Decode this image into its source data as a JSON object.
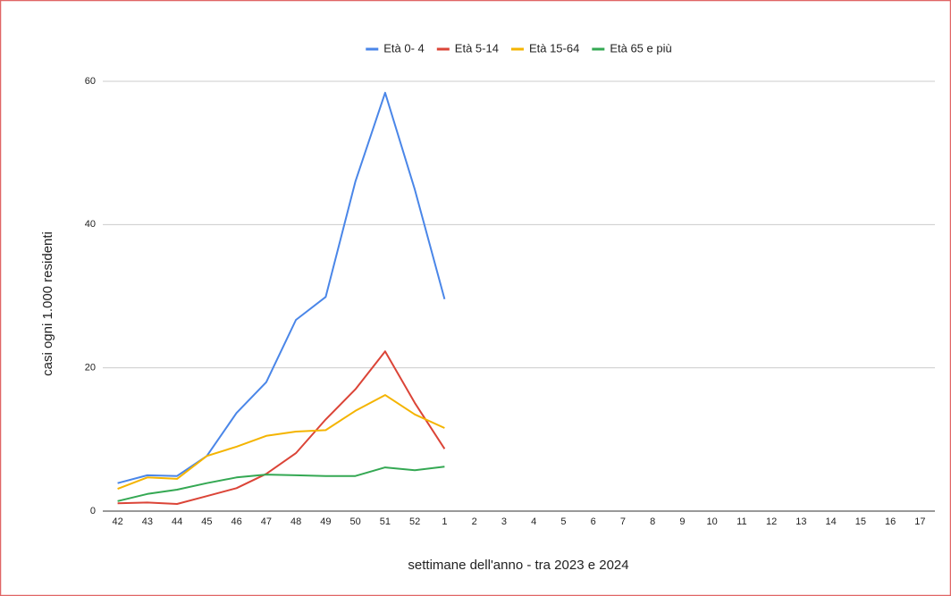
{
  "chart_data": {
    "type": "line",
    "x_label": "settimane dell'anno - tra 2023 e 2024",
    "y_label": "casi ogni 1.000 residenti",
    "categories": [
      "42",
      "43",
      "44",
      "45",
      "46",
      "47",
      "48",
      "49",
      "50",
      "51",
      "52",
      "1",
      "2",
      "3",
      "4",
      "5",
      "6",
      "7",
      "8",
      "9",
      "10",
      "11",
      "12",
      "13",
      "14",
      "15",
      "16",
      "17"
    ],
    "series": [
      {
        "name": "Età 0- 4",
        "color": "#4a86e8",
        "values": [
          3.9,
          5.0,
          4.9,
          7.7,
          13.7,
          18.0,
          26.7,
          29.9,
          46.0,
          58.4,
          44.9,
          29.6,
          null,
          null,
          null,
          null,
          null,
          null,
          null,
          null,
          null,
          null,
          null,
          null,
          null,
          null,
          null,
          null
        ]
      },
      {
        "name": "Età 5-14",
        "color": "#db4437",
        "values": [
          1.1,
          1.2,
          1.0,
          2.1,
          3.2,
          5.2,
          8.1,
          12.8,
          17.0,
          22.3,
          15.1,
          8.7,
          null,
          null,
          null,
          null,
          null,
          null,
          null,
          null,
          null,
          null,
          null,
          null,
          null,
          null,
          null,
          null
        ]
      },
      {
        "name": "Età 15-64",
        "color": "#f4b400",
        "values": [
          3.1,
          4.7,
          4.5,
          7.7,
          9.0,
          10.5,
          11.1,
          11.3,
          14.0,
          16.2,
          13.5,
          11.6,
          null,
          null,
          null,
          null,
          null,
          null,
          null,
          null,
          null,
          null,
          null,
          null,
          null,
          null,
          null,
          null
        ]
      },
      {
        "name": "Età 65 e più",
        "color": "#34a853",
        "values": [
          1.4,
          2.4,
          3.0,
          3.9,
          4.7,
          5.1,
          5.0,
          4.9,
          4.9,
          6.1,
          5.7,
          6.2,
          null,
          null,
          null,
          null,
          null,
          null,
          null,
          null,
          null,
          null,
          null,
          null,
          null,
          null,
          null,
          null
        ]
      }
    ],
    "ylim": [
      0,
      60
    ],
    "yticks": [
      0,
      20,
      40,
      60
    ],
    "grid": true,
    "legend": "top"
  }
}
